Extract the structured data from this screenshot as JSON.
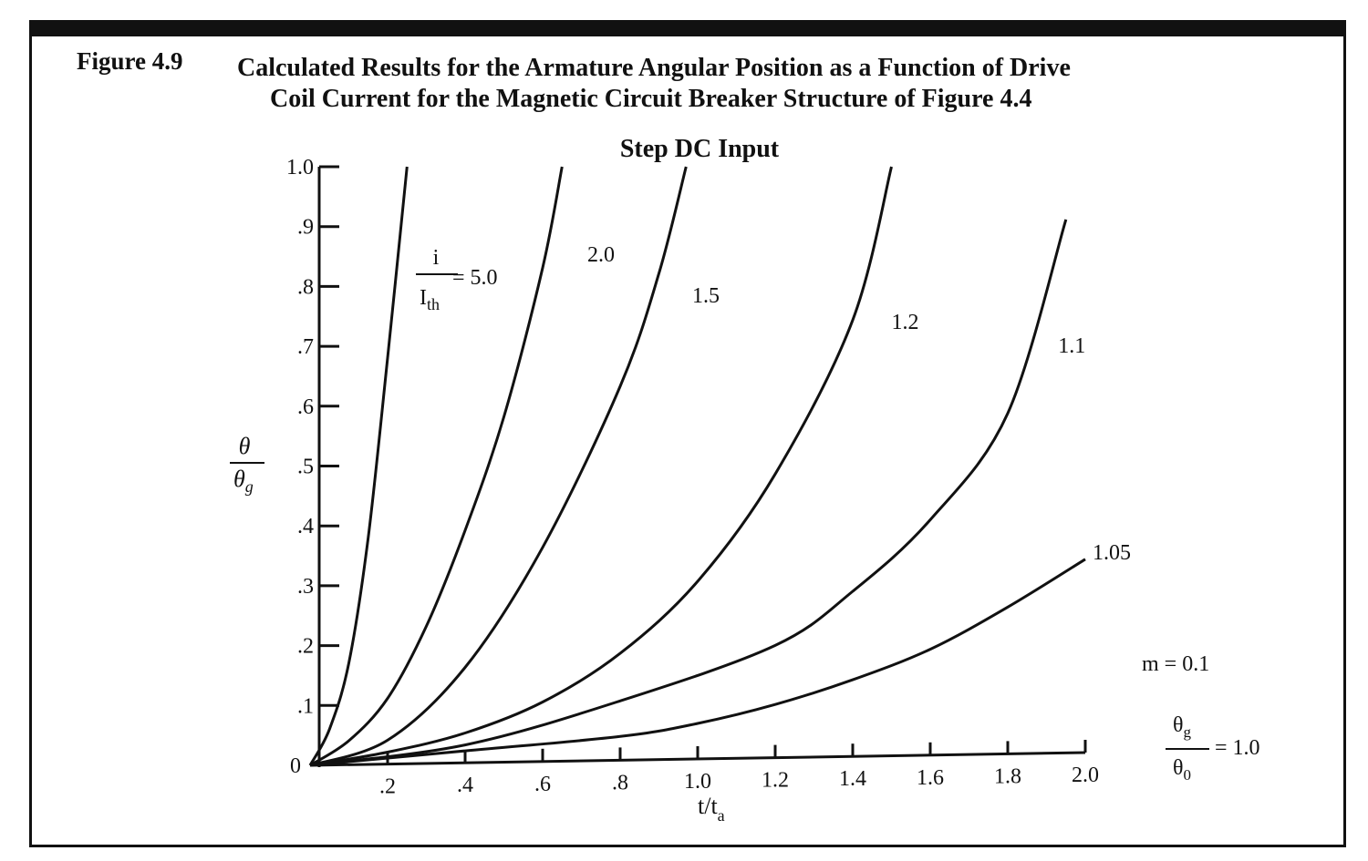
{
  "figure": {
    "label": "Figure 4.9",
    "title_line1": "Calculated Results for the Armature  Angular Position as a Function of Drive",
    "title_line2": "Coil Current for the Magnetic Circuit Breaker Structure of Figure 4.4"
  },
  "chart_data": {
    "type": "line",
    "title": "Step DC Input",
    "xlabel": "t/t",
    "xlabel_sub": "a",
    "ylabel_num": "θ",
    "ylabel_den": "θ",
    "ylabel_den_sub": "g",
    "xlim": [
      0,
      2.0
    ],
    "ylim": [
      0,
      1.0
    ],
    "x_ticks": [
      ".2",
      ".4",
      ".6",
      ".8",
      "1.0",
      "1.2",
      "1.4",
      "1.6",
      "1.8",
      "2.0"
    ],
    "y_ticks": [
      "0",
      ".1",
      ".2",
      ".3",
      ".4",
      ".5",
      ".6",
      ".7",
      ".8",
      ".9",
      "1.0"
    ],
    "curve_label_prefix": {
      "num": "i",
      "den": "I",
      "den_sub": "th",
      "eq": "= 5.0"
    },
    "series": [
      {
        "name": "5.0",
        "label": "",
        "x": [
          0,
          0.05,
          0.1,
          0.15,
          0.2,
          0.25
        ],
        "y": [
          0,
          0.06,
          0.17,
          0.38,
          0.68,
          1.0
        ]
      },
      {
        "name": "2.0",
        "label": "2.0",
        "x": [
          0,
          0.1,
          0.2,
          0.3,
          0.4,
          0.5,
          0.6,
          0.65
        ],
        "y": [
          0,
          0.04,
          0.11,
          0.23,
          0.39,
          0.58,
          0.83,
          1.0
        ]
      },
      {
        "name": "1.5",
        "label": "1.5",
        "x": [
          0,
          0.2,
          0.4,
          0.6,
          0.8,
          0.9,
          0.97
        ],
        "y": [
          0,
          0.04,
          0.16,
          0.36,
          0.63,
          0.82,
          1.0
        ]
      },
      {
        "name": "1.2",
        "label": "1.2",
        "x": [
          0,
          0.2,
          0.4,
          0.6,
          0.8,
          1.0,
          1.2,
          1.4,
          1.5
        ],
        "y": [
          0,
          0.02,
          0.05,
          0.1,
          0.18,
          0.3,
          0.48,
          0.74,
          1.0
        ]
      },
      {
        "name": "1.1",
        "label": "1.1",
        "x": [
          0,
          0.4,
          0.8,
          1.2,
          1.4,
          1.6,
          1.8,
          1.95
        ],
        "y": [
          0,
          0.03,
          0.1,
          0.19,
          0.28,
          0.4,
          0.58,
          0.91
        ]
      },
      {
        "name": "1.05",
        "label": "1.05",
        "x": [
          0,
          0.4,
          0.8,
          1.0,
          1.2,
          1.4,
          1.6,
          1.8,
          2.0
        ],
        "y": [
          0,
          0.02,
          0.04,
          0.06,
          0.09,
          0.13,
          0.18,
          0.25,
          0.33
        ]
      }
    ],
    "annotations": {
      "m": "m = 0.1",
      "ratio_num": "θ",
      "ratio_num_sub": "g",
      "ratio_den": "θ",
      "ratio_den_sub": "0",
      "ratio_value": "= 1.0"
    },
    "grid": false,
    "legend": "inline curve labels"
  }
}
